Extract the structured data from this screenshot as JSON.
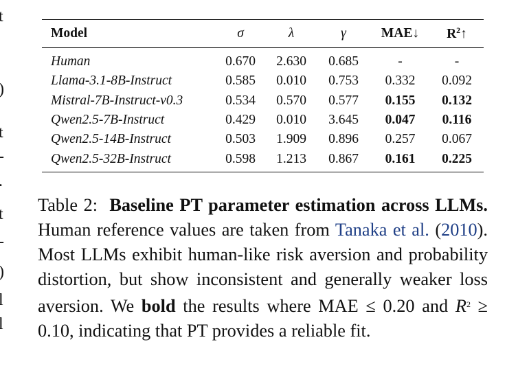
{
  "margin_fragments": [
    "t",
    ")",
    "t",
    "-",
    ".",
    "t",
    "-",
    ")",
    "l",
    "l"
  ],
  "table": {
    "headers": {
      "model": "Model",
      "sigma": "σ",
      "lambda": "λ",
      "gamma": "γ",
      "mae": "MAE↓",
      "r2_base": "R",
      "r2_sup": "2",
      "r2_arrow": "↑"
    },
    "rows": [
      {
        "model": "Human",
        "sigma": "0.670",
        "lambda": "2.630",
        "gamma": "0.685",
        "mae": "-",
        "r2": "-",
        "bold": false
      },
      {
        "model": "Llama-3.1-8B-Instruct",
        "sigma": "0.585",
        "lambda": "0.010",
        "gamma": "0.753",
        "mae": "0.332",
        "r2": "0.092",
        "bold": false
      },
      {
        "model": "Mistral-7B-Instruct-v0.3",
        "sigma": "0.534",
        "lambda": "0.570",
        "gamma": "0.577",
        "mae": "0.155",
        "r2": "0.132",
        "bold": true
      },
      {
        "model": "Qwen2.5-7B-Instruct",
        "sigma": "0.429",
        "lambda": "0.010",
        "gamma": "3.645",
        "mae": "0.047",
        "r2": "0.116",
        "bold": true
      },
      {
        "model": "Qwen2.5-14B-Instruct",
        "sigma": "0.503",
        "lambda": "1.909",
        "gamma": "0.896",
        "mae": "0.257",
        "r2": "0.067",
        "bold": false
      },
      {
        "model": "Qwen2.5-32B-Instruct",
        "sigma": "0.598",
        "lambda": "1.213",
        "gamma": "0.867",
        "mae": "0.161",
        "r2": "0.225",
        "bold": true
      }
    ]
  },
  "caption": {
    "label": "Table 2:",
    "heading": "Baseline PT parameter estimation across LLMs.",
    "t1": "Human reference values are taken from",
    "cite_authors": "Tanaka et al.",
    "cite_open": "(",
    "cite_year": "2010",
    "cite_close": ").",
    "t2": "Most LLMs exhibit human-like risk aversion and probability distortion, but show inconsistent and generally weaker loss aversion. We",
    "bold_word": "bold",
    "t3": "the results where MAE",
    "leq": "≤ 0.20",
    "and": "and",
    "r_var": "R",
    "r_sup": "2",
    "geq": "≥ 0.10,",
    "t4": "indicating that PT provides a reliable fit."
  }
}
